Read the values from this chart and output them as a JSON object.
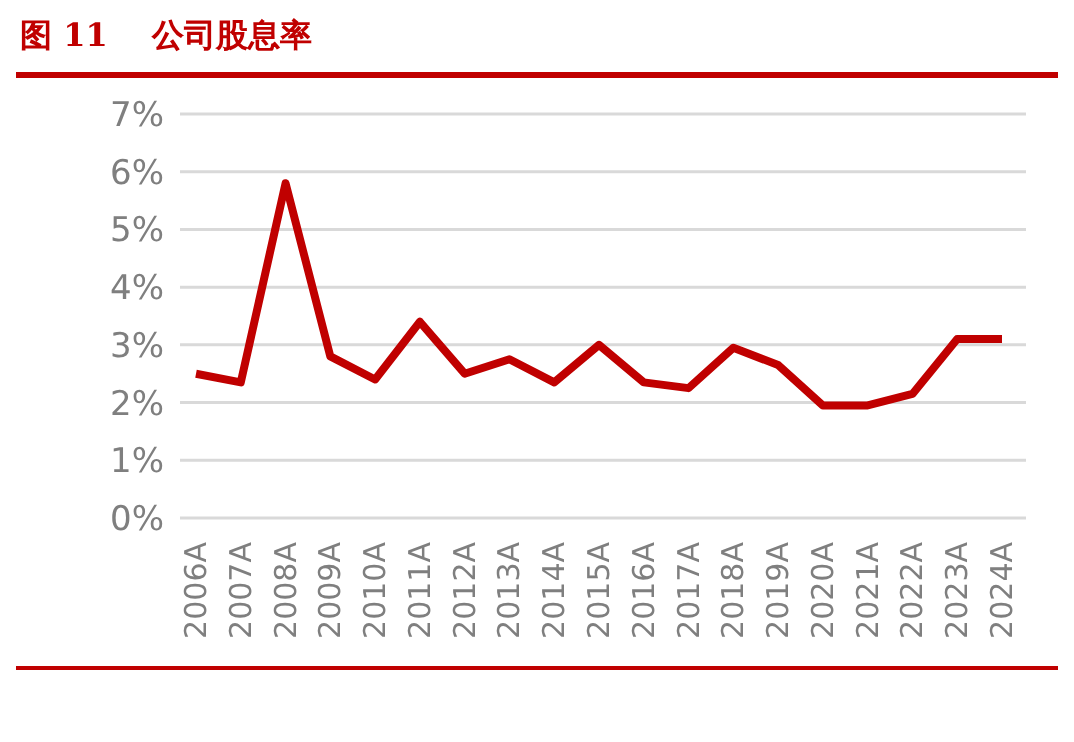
{
  "chart_data": {
    "type": "line",
    "title": "图 11    公司股息率",
    "categories": [
      "2006A",
      "2007A",
      "2008A",
      "2009A",
      "2010A",
      "2011A",
      "2012A",
      "2013A",
      "2014A",
      "2015A",
      "2016A",
      "2017A",
      "2018A",
      "2019A",
      "2020A",
      "2021A",
      "2022A",
      "2023A",
      "2024A"
    ],
    "series": [
      {
        "color": "#c00000",
        "values": [
          2.5,
          2.35,
          5.8,
          2.8,
          2.4,
          3.4,
          2.5,
          2.75,
          2.35,
          3.0,
          2.35,
          2.25,
          2.95,
          2.65,
          1.95,
          1.95,
          2.15,
          3.1,
          3.1
        ]
      }
    ],
    "ylim": [
      0,
      7
    ],
    "yticks": [
      {
        "value": 0,
        "label": "0%"
      },
      {
        "value": 1,
        "label": "1%"
      },
      {
        "value": 2,
        "label": "2%"
      },
      {
        "value": 3,
        "label": "3%"
      },
      {
        "value": 4,
        "label": "4%"
      },
      {
        "value": 5,
        "label": "5%"
      },
      {
        "value": 6,
        "label": "6%"
      },
      {
        "value": 7,
        "label": "7%"
      }
    ],
    "grid": "y",
    "marker": "none",
    "line_style": "solid",
    "legend": false
  }
}
